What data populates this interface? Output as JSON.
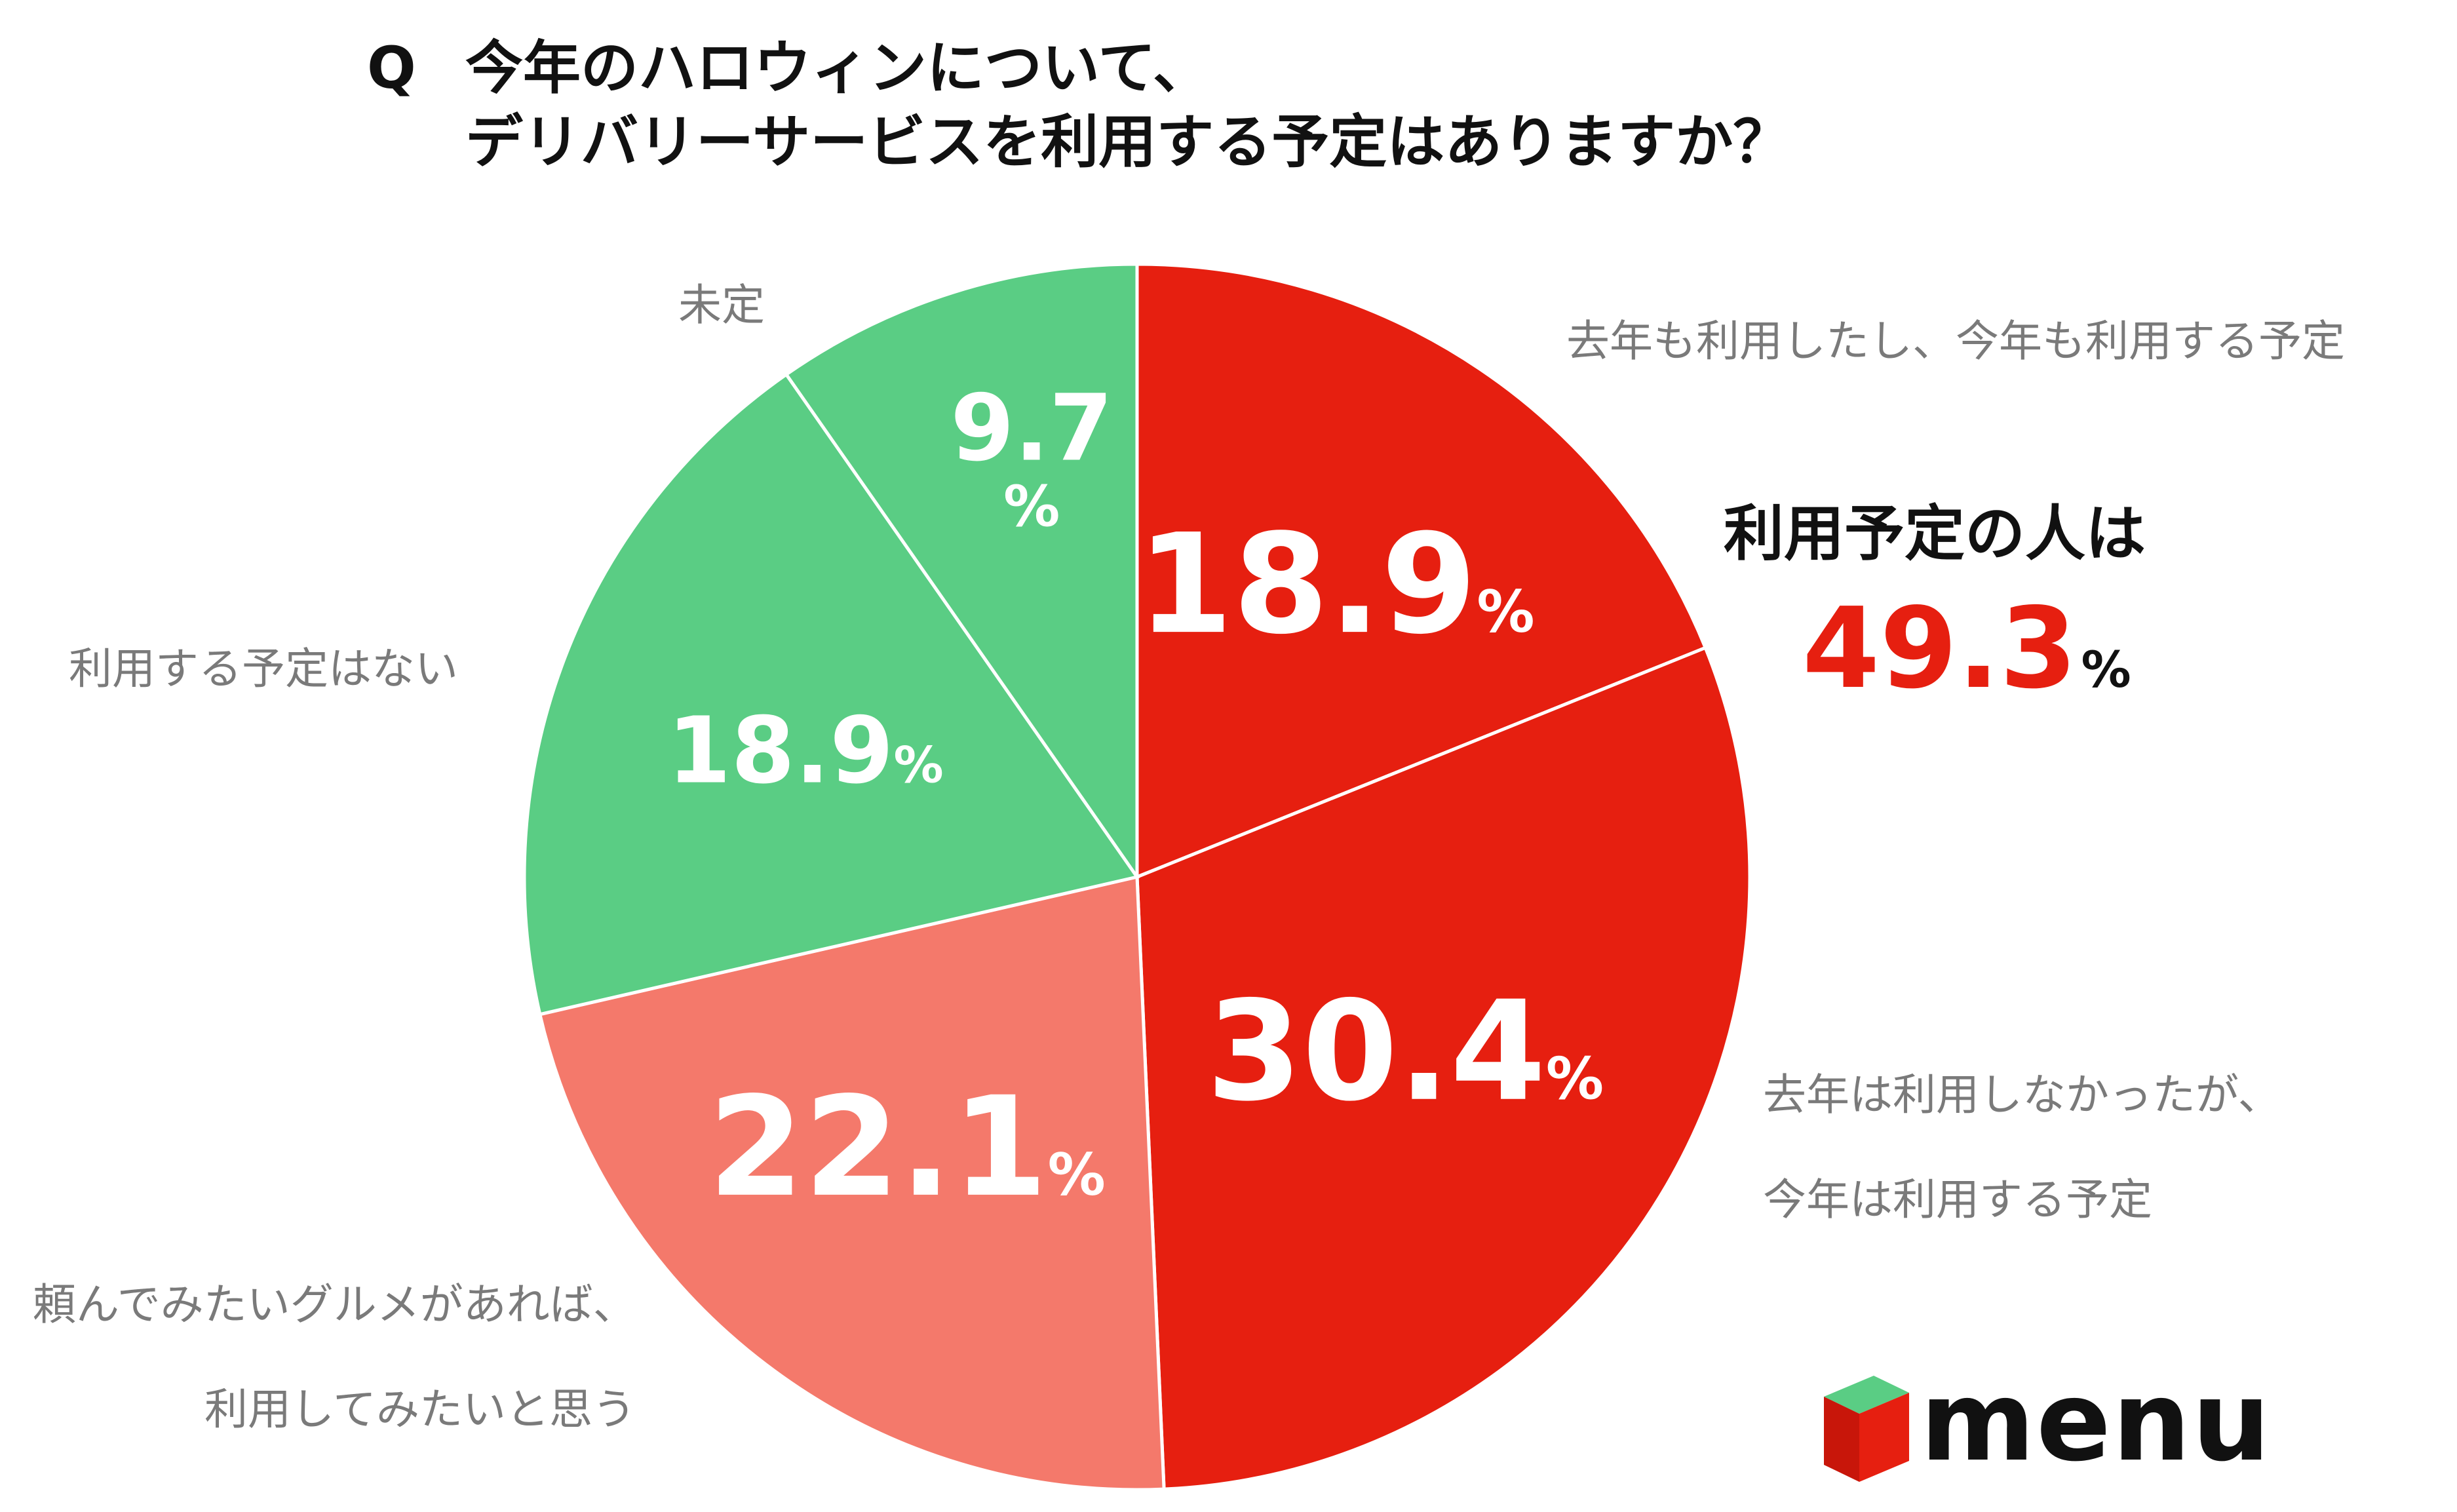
{
  "title": {
    "q": "Q",
    "line1": "今年のハロウィンについて、",
    "line2": "デリバリーサービスを利用する予定はありますか？"
  },
  "chart_data": {
    "type": "pie",
    "title": "今年のハロウィンについて、デリバリーサービスを利用する予定はありますか？",
    "start_angle": "12 o'clock",
    "direction": "clockwise",
    "unit": "%",
    "slices": [
      {
        "label": "去年も利用したし、今年も利用する予定",
        "value": 18.9,
        "value_text": "18.9",
        "color": "#e61f10"
      },
      {
        "label": "去年は利用しなかったが、今年は利用する予定",
        "value": 30.4,
        "value_text": "30.4",
        "color": "#e61f10"
      },
      {
        "label": "頼んでみたいグルメがあれば、利用してみたいと思う",
        "value": 22.1,
        "value_text": "22.1",
        "color": "#f4796b"
      },
      {
        "label": "利用する予定はない",
        "value": 18.9,
        "value_text": "18.9",
        "color": "#5acd84"
      },
      {
        "label": "未定",
        "value": 9.7,
        "value_text": "9.7",
        "color": "#5acd84"
      }
    ]
  },
  "labels": {
    "slice1": "去年も利用したし、今年も利用する予定",
    "slice2_line1": "去年は利用しなかったが、",
    "slice2_line2": "今年は利用する予定",
    "slice3_line1": "頼んでみたいグルメがあれば、",
    "slice3_line2": "利用してみたいと思う",
    "slice4": "利用する予定はない",
    "slice5": "未定"
  },
  "summary": {
    "label": "利用予定の人は",
    "value": "49.3",
    "unit": "%"
  },
  "logo": {
    "text": "menu",
    "colors": {
      "red": "#e61f10",
      "green": "#5acd84"
    }
  }
}
